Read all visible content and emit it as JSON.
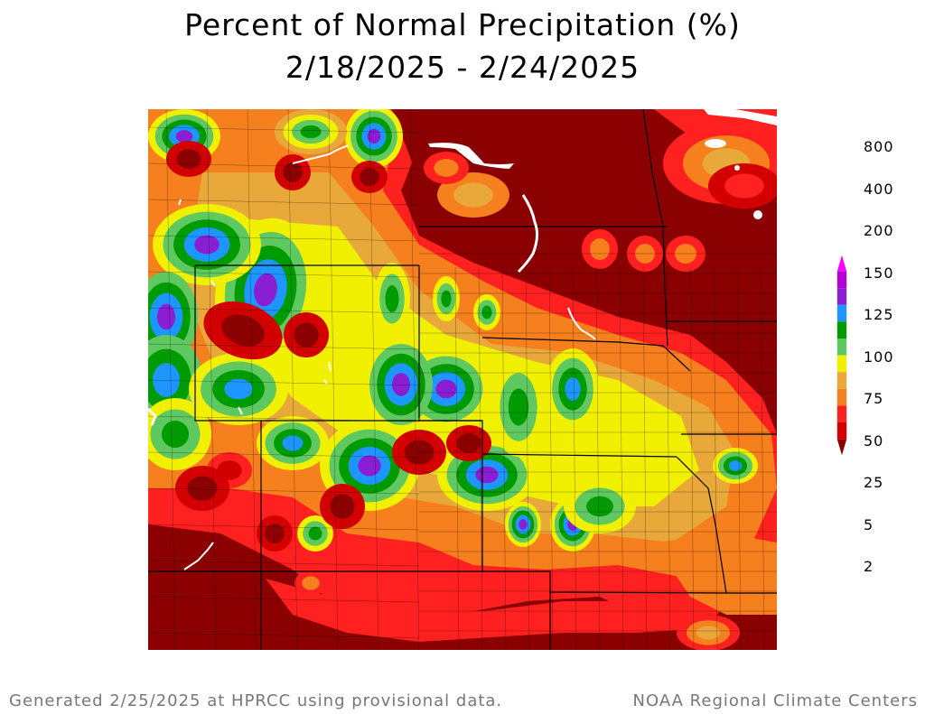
{
  "header": {
    "title": "Percent of Normal Precipitation (%)",
    "date_range": "2/18/2025 - 2/24/2025"
  },
  "legend": {
    "levels": [
      "2",
      "5",
      "25",
      "50",
      "75",
      "100",
      "125",
      "150",
      "200",
      "400",
      "800"
    ],
    "colors": [
      "#8b0000",
      "#d20000",
      "#ff2020",
      "#f67f1e",
      "#e8a83a",
      "#f0f000",
      "#60c860",
      "#009b00",
      "#1e96ff",
      "#8a1ed2",
      "#b400d2",
      "#ff00ff"
    ]
  },
  "map": {
    "colors": {
      "background": "#8b0000",
      "water": "#ffffff",
      "border": "#000000"
    }
  },
  "footer": {
    "left": "Generated 2/25/2025 at HPRCC using provisional data.",
    "right": "NOAA Regional Climate Centers"
  }
}
